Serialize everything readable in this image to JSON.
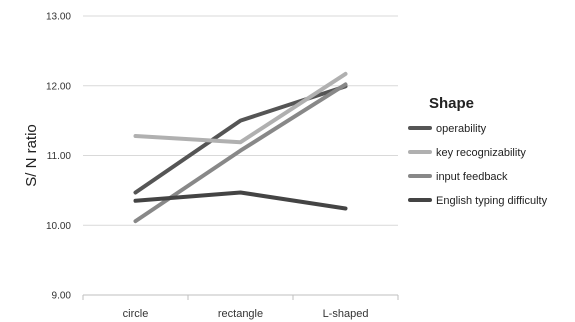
{
  "chart_data": {
    "type": "line",
    "title": "",
    "xlabel": "",
    "ylabel": "S/ N ratio",
    "categories": [
      "circle",
      "rectangle",
      "L-shaped"
    ],
    "ylim": [
      9.0,
      13.0
    ],
    "yticks": [
      "9.00",
      "10.00",
      "11.00",
      "12.00",
      "13.00"
    ],
    "grid": true,
    "legend": {
      "title": "Shape",
      "position": "right"
    },
    "series": [
      {
        "name": "operability",
        "values": [
          10.47,
          11.5,
          11.99
        ],
        "color": "#555555"
      },
      {
        "name": "key recognizability",
        "values": [
          11.28,
          11.19,
          12.17
        ],
        "color": "#b0b0b0"
      },
      {
        "name": "input feedback",
        "values": [
          10.06,
          11.07,
          12.02
        ],
        "color": "#888888"
      },
      {
        "name": "English typing difficulty",
        "values": [
          10.35,
          10.47,
          10.24
        ],
        "color": "#444444"
      }
    ]
  }
}
